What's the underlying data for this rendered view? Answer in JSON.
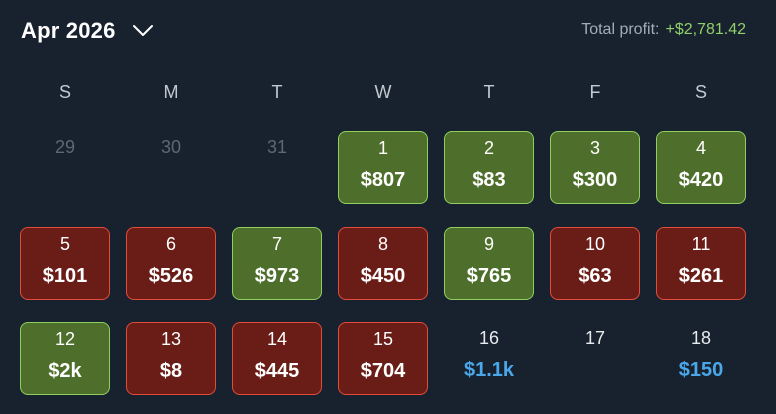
{
  "header": {
    "month_label": "Apr 2026",
    "total_profit_label": "Total profit:",
    "total_profit_value": "+$2,781.42"
  },
  "weekdays": [
    "S",
    "M",
    "T",
    "W",
    "T",
    "F",
    "S"
  ],
  "colors": {
    "background": "#18222f",
    "profit_green": "#90cf6a",
    "win_fill": "#4e6f2b",
    "win_border": "#8fcf5f",
    "loss_fill": "#6a1d17",
    "loss_border": "#e34b3a",
    "upcoming_amount": "#4aa8ea"
  },
  "weeks": [
    [
      {
        "day": "29",
        "amount": "",
        "status": "outside"
      },
      {
        "day": "30",
        "amount": "",
        "status": "outside"
      },
      {
        "day": "31",
        "amount": "",
        "status": "outside"
      },
      {
        "day": "1",
        "amount": "$807",
        "status": "win"
      },
      {
        "day": "2",
        "amount": "$83",
        "status": "win"
      },
      {
        "day": "3",
        "amount": "$300",
        "status": "win"
      },
      {
        "day": "4",
        "amount": "$420",
        "status": "win"
      }
    ],
    [
      {
        "day": "5",
        "amount": "$101",
        "status": "loss"
      },
      {
        "day": "6",
        "amount": "$526",
        "status": "loss"
      },
      {
        "day": "7",
        "amount": "$973",
        "status": "win"
      },
      {
        "day": "8",
        "amount": "$450",
        "status": "loss"
      },
      {
        "day": "9",
        "amount": "$765",
        "status": "win"
      },
      {
        "day": "10",
        "amount": "$63",
        "status": "loss"
      },
      {
        "day": "11",
        "amount": "$261",
        "status": "loss"
      }
    ],
    [
      {
        "day": "12",
        "amount": "$2k",
        "status": "win"
      },
      {
        "day": "13",
        "amount": "$8",
        "status": "loss"
      },
      {
        "day": "14",
        "amount": "$445",
        "status": "loss"
      },
      {
        "day": "15",
        "amount": "$704",
        "status": "loss"
      },
      {
        "day": "16",
        "amount": "$1.1k",
        "status": "pending"
      },
      {
        "day": "17",
        "amount": "",
        "status": "empty"
      },
      {
        "day": "18",
        "amount": "$150",
        "status": "pending"
      }
    ]
  ]
}
